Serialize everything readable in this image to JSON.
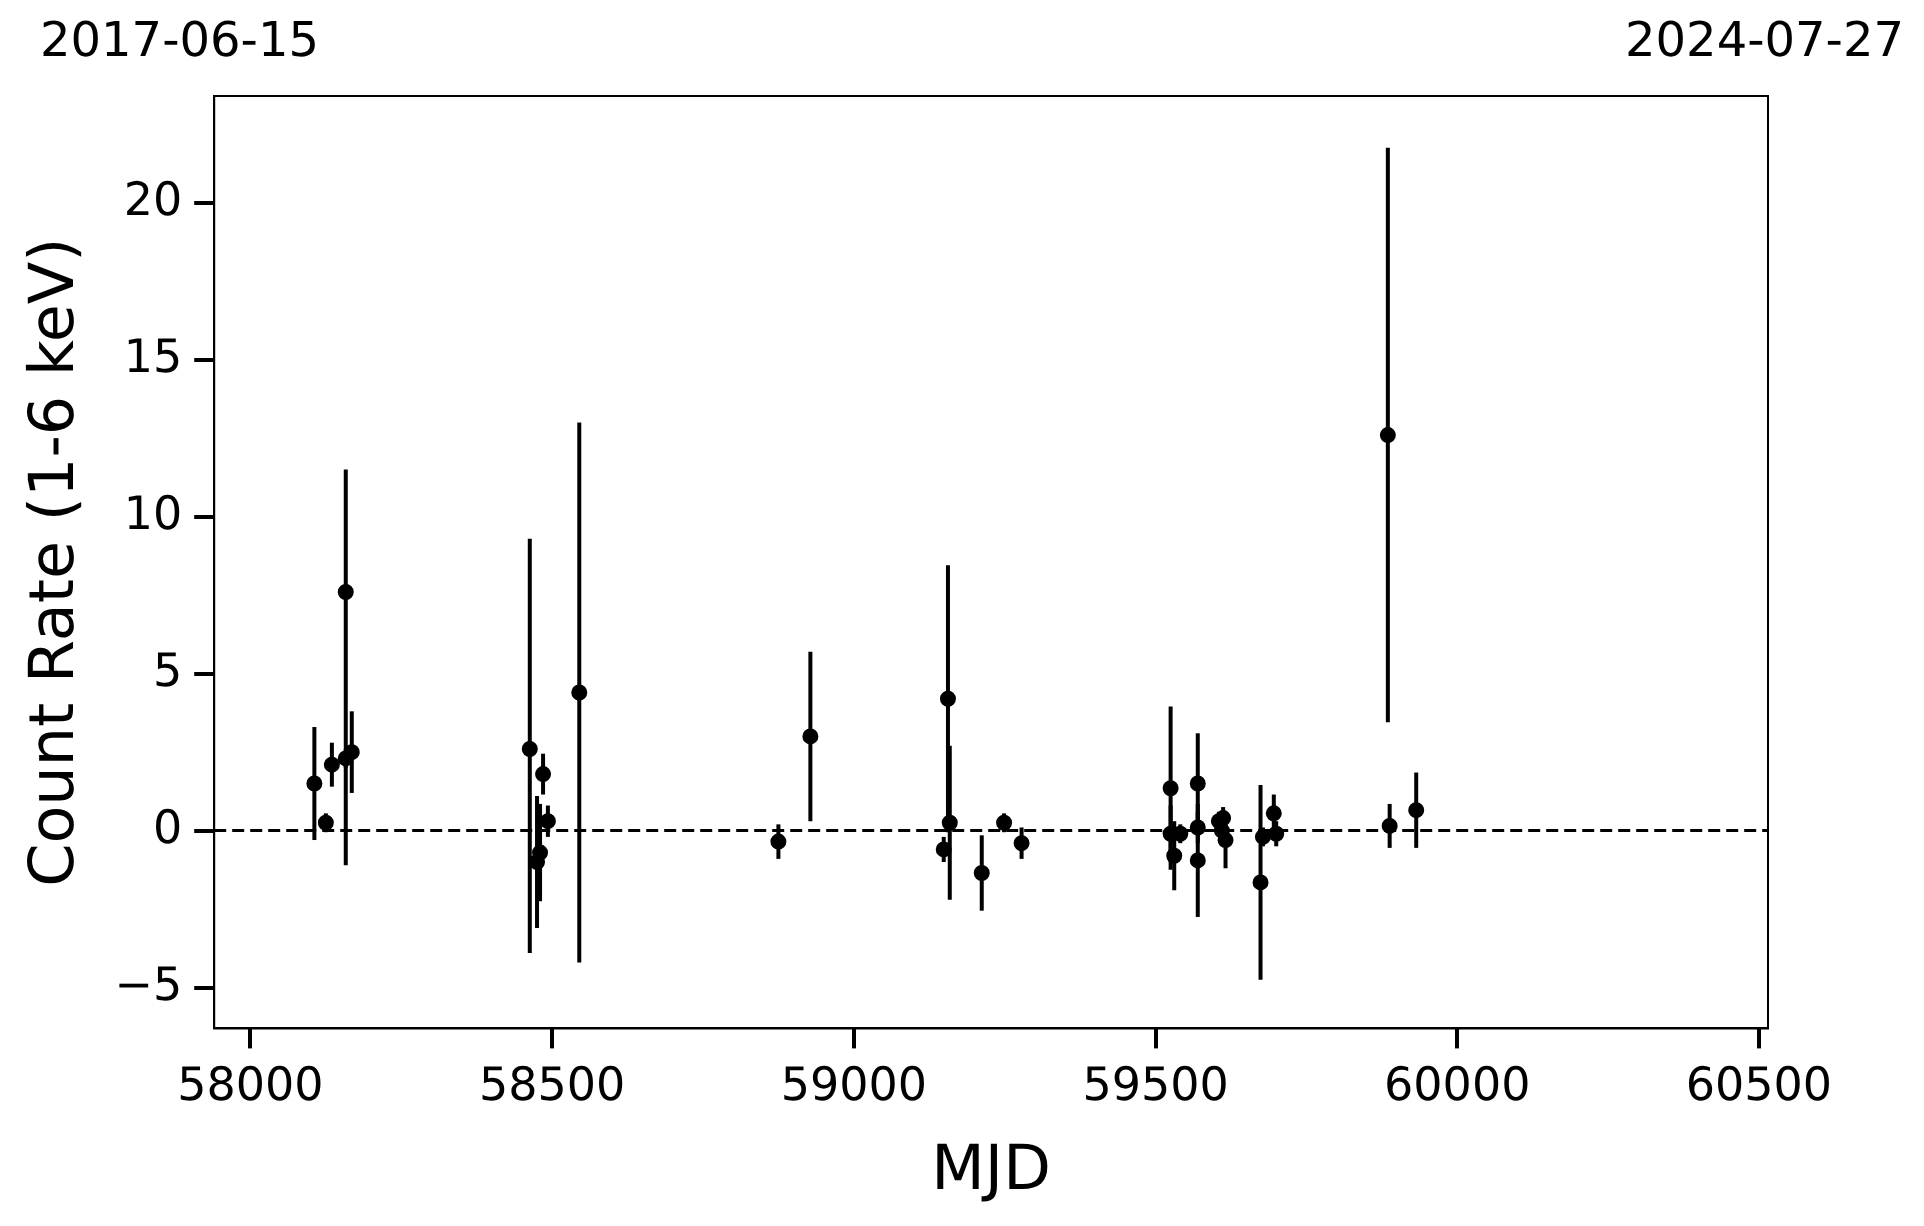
{
  "chart_data": {
    "type": "scatter",
    "xlabel": "MJD",
    "ylabel": "Count Rate (1-6 keV)",
    "annotations": [
      "2017-06-15",
      "2024-07-27"
    ],
    "xlim": [
      57940,
      60515
    ],
    "xticks": [
      58000,
      58500,
      59000,
      59500,
      60000,
      60500
    ],
    "ylim": [
      -6.3,
      23.4
    ],
    "yticks": [
      {
        "value": -5,
        "label": "−5"
      },
      0,
      5,
      10,
      15,
      20
    ],
    "grid": false,
    "legend": false,
    "marker": "circle",
    "ref_lines": [
      {
        "axis": "y",
        "value": 0,
        "color": "#000000",
        "line_style": "dashed"
      }
    ],
    "series": [
      {
        "color": "#000000",
        "x": [
          58106,
          58125,
          58135,
          58158,
          58158,
          58168,
          58463,
          58475,
          58480,
          58485,
          58493,
          58545,
          58875,
          58928,
          59149,
          59156,
          59159,
          59212,
          59249,
          59278,
          59525,
          59525,
          59531,
          59541,
          59570,
          59570,
          59570,
          59605,
          59610,
          59612,
          59616,
          59674,
          59678,
          59696,
          59700,
          59885,
          59888,
          59932
        ],
        "values": [
          1.5,
          0.25,
          2.1,
          7.6,
          2.3,
          2.5,
          2.6,
          -1.0,
          -0.7,
          1.8,
          0.3,
          4.4,
          -0.35,
          3.0,
          -0.6,
          4.2,
          0.25,
          -1.35,
          0.25,
          -0.4,
          1.35,
          -0.1,
          -0.8,
          -0.1,
          1.5,
          0.1,
          -0.95,
          0.3,
          0,
          0.4,
          -0.3,
          -1.65,
          -0.2,
          0.55,
          -0.1,
          12.6,
          0.15,
          0.65
        ],
        "errors": [
          1.8,
          0.3,
          0.7,
          [
            -1.1,
            11.5
          ],
          0.3,
          1.3,
          [
            -3.9,
            9.3
          ],
          [
            -3.1,
            1.1
          ],
          1.55,
          0.65,
          0.5,
          [
            -4.2,
            13.0
          ],
          0.55,
          2.7,
          0.4,
          4.25,
          2.45,
          1.2,
          0.3,
          0.5,
          2.6,
          0.9,
          1.1,
          0.3,
          1.6,
          0.5,
          1.8,
          0.3,
          0.4,
          0.35,
          0.9,
          3.1,
          0.3,
          0.6,
          0.4,
          9.15,
          0.7,
          1.2
        ]
      }
    ]
  }
}
